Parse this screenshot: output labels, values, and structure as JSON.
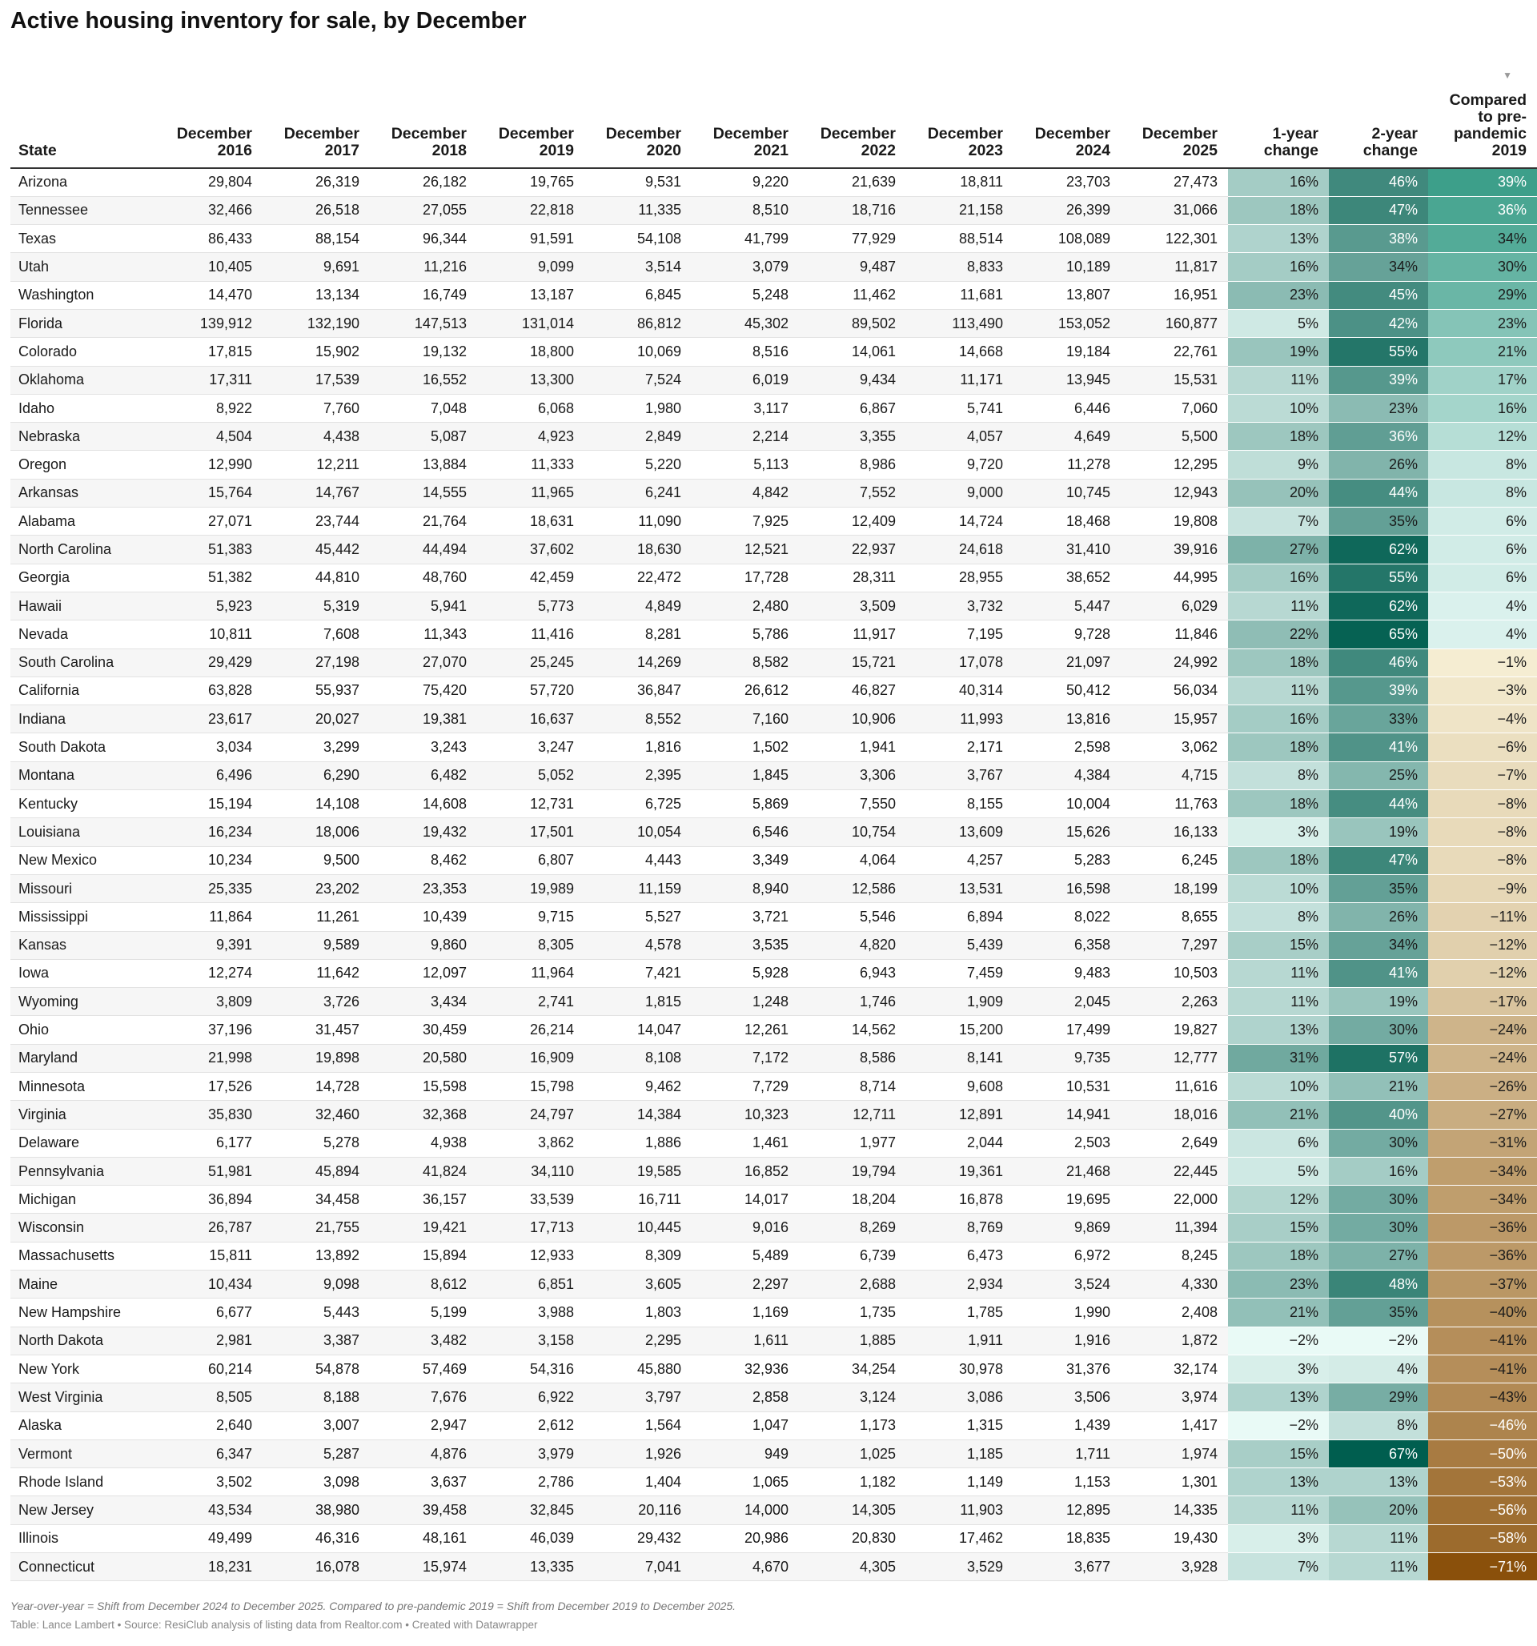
{
  "title": "Active housing inventory for sale, by December",
  "notes": "Year-over-year = Shift from December 2024 to December 2025. Compared to pre-pandemic 2019 = Shift from December 2019 to December 2025.",
  "credits": "Table: Lance Lambert • Source: ResiClub analysis of listing data from Realtor.com • Created with Datawrapper",
  "sort_icon": "sort-descending-icon",
  "columns": [
    "State",
    "December 2016",
    "December 2017",
    "December 2018",
    "December 2019",
    "December 2020",
    "December 2021",
    "December 2022",
    "December 2023",
    "December 2024",
    "December 2025",
    "1-year change",
    "2-year change",
    "Compared to pre-pandemic 2019"
  ],
  "chart_data": {
    "type": "table",
    "title": "Active housing inventory for sale, by December",
    "columns": [
      "State",
      "December 2016",
      "December 2017",
      "December 2018",
      "December 2019",
      "December 2020",
      "December 2021",
      "December 2022",
      "December 2023",
      "December 2024",
      "December 2025",
      "1-year change",
      "2-year change",
      "Compared to pre-pandemic 2019"
    ],
    "sorted_by": "Compared to pre-pandemic 2019",
    "sort_order": "descending",
    "rows": [
      [
        "Arizona",
        "29,804",
        "26,319",
        "26,182",
        "19,765",
        "9,531",
        "9,220",
        "21,639",
        "18,811",
        "23,703",
        "27,473",
        "16%",
        "46%",
        "39%"
      ],
      [
        "Tennessee",
        "32,466",
        "26,518",
        "27,055",
        "22,818",
        "11,335",
        "8,510",
        "18,716",
        "21,158",
        "26,399",
        "31,066",
        "18%",
        "47%",
        "36%"
      ],
      [
        "Texas",
        "86,433",
        "88,154",
        "96,344",
        "91,591",
        "54,108",
        "41,799",
        "77,929",
        "88,514",
        "108,089",
        "122,301",
        "13%",
        "38%",
        "34%"
      ],
      [
        "Utah",
        "10,405",
        "9,691",
        "11,216",
        "9,099",
        "3,514",
        "3,079",
        "9,487",
        "8,833",
        "10,189",
        "11,817",
        "16%",
        "34%",
        "30%"
      ],
      [
        "Washington",
        "14,470",
        "13,134",
        "16,749",
        "13,187",
        "6,845",
        "5,248",
        "11,462",
        "11,681",
        "13,807",
        "16,951",
        "23%",
        "45%",
        "29%"
      ],
      [
        "Florida",
        "139,912",
        "132,190",
        "147,513",
        "131,014",
        "86,812",
        "45,302",
        "89,502",
        "113,490",
        "153,052",
        "160,877",
        "5%",
        "42%",
        "23%"
      ],
      [
        "Colorado",
        "17,815",
        "15,902",
        "19,132",
        "18,800",
        "10,069",
        "8,516",
        "14,061",
        "14,668",
        "19,184",
        "22,761",
        "19%",
        "55%",
        "21%"
      ],
      [
        "Oklahoma",
        "17,311",
        "17,539",
        "16,552",
        "13,300",
        "7,524",
        "6,019",
        "9,434",
        "11,171",
        "13,945",
        "15,531",
        "11%",
        "39%",
        "17%"
      ],
      [
        "Idaho",
        "8,922",
        "7,760",
        "7,048",
        "6,068",
        "1,980",
        "3,117",
        "6,867",
        "5,741",
        "6,446",
        "7,060",
        "10%",
        "23%",
        "16%"
      ],
      [
        "Nebraska",
        "4,504",
        "4,438",
        "5,087",
        "4,923",
        "2,849",
        "2,214",
        "3,355",
        "4,057",
        "4,649",
        "5,500",
        "18%",
        "36%",
        "12%"
      ],
      [
        "Oregon",
        "12,990",
        "12,211",
        "13,884",
        "11,333",
        "5,220",
        "5,113",
        "8,986",
        "9,720",
        "11,278",
        "12,295",
        "9%",
        "26%",
        "8%"
      ],
      [
        "Arkansas",
        "15,764",
        "14,767",
        "14,555",
        "11,965",
        "6,241",
        "4,842",
        "7,552",
        "9,000",
        "10,745",
        "12,943",
        "20%",
        "44%",
        "8%"
      ],
      [
        "Alabama",
        "27,071",
        "23,744",
        "21,764",
        "18,631",
        "11,090",
        "7,925",
        "12,409",
        "14,724",
        "18,468",
        "19,808",
        "7%",
        "35%",
        "6%"
      ],
      [
        "North Carolina",
        "51,383",
        "45,442",
        "44,494",
        "37,602",
        "18,630",
        "12,521",
        "22,937",
        "24,618",
        "31,410",
        "39,916",
        "27%",
        "62%",
        "6%"
      ],
      [
        "Georgia",
        "51,382",
        "44,810",
        "48,760",
        "42,459",
        "22,472",
        "17,728",
        "28,311",
        "28,955",
        "38,652",
        "44,995",
        "16%",
        "55%",
        "6%"
      ],
      [
        "Hawaii",
        "5,923",
        "5,319",
        "5,941",
        "5,773",
        "4,849",
        "2,480",
        "3,509",
        "3,732",
        "5,447",
        "6,029",
        "11%",
        "62%",
        "4%"
      ],
      [
        "Nevada",
        "10,811",
        "7,608",
        "11,343",
        "11,416",
        "8,281",
        "5,786",
        "11,917",
        "7,195",
        "9,728",
        "11,846",
        "22%",
        "65%",
        "4%"
      ],
      [
        "South Carolina",
        "29,429",
        "27,198",
        "27,070",
        "25,245",
        "14,269",
        "8,582",
        "15,721",
        "17,078",
        "21,097",
        "24,992",
        "18%",
        "46%",
        "−1%"
      ],
      [
        "California",
        "63,828",
        "55,937",
        "75,420",
        "57,720",
        "36,847",
        "26,612",
        "46,827",
        "40,314",
        "50,412",
        "56,034",
        "11%",
        "39%",
        "−3%"
      ],
      [
        "Indiana",
        "23,617",
        "20,027",
        "19,381",
        "16,637",
        "8,552",
        "7,160",
        "10,906",
        "11,993",
        "13,816",
        "15,957",
        "16%",
        "33%",
        "−4%"
      ],
      [
        "South Dakota",
        "3,034",
        "3,299",
        "3,243",
        "3,247",
        "1,816",
        "1,502",
        "1,941",
        "2,171",
        "2,598",
        "3,062",
        "18%",
        "41%",
        "−6%"
      ],
      [
        "Montana",
        "6,496",
        "6,290",
        "6,482",
        "5,052",
        "2,395",
        "1,845",
        "3,306",
        "3,767",
        "4,384",
        "4,715",
        "8%",
        "25%",
        "−7%"
      ],
      [
        "Kentucky",
        "15,194",
        "14,108",
        "14,608",
        "12,731",
        "6,725",
        "5,869",
        "7,550",
        "8,155",
        "10,004",
        "11,763",
        "18%",
        "44%",
        "−8%"
      ],
      [
        "Louisiana",
        "16,234",
        "18,006",
        "19,432",
        "17,501",
        "10,054",
        "6,546",
        "10,754",
        "13,609",
        "15,626",
        "16,133",
        "3%",
        "19%",
        "−8%"
      ],
      [
        "New Mexico",
        "10,234",
        "9,500",
        "8,462",
        "6,807",
        "4,443",
        "3,349",
        "4,064",
        "4,257",
        "5,283",
        "6,245",
        "18%",
        "47%",
        "−8%"
      ],
      [
        "Missouri",
        "25,335",
        "23,202",
        "23,353",
        "19,989",
        "11,159",
        "8,940",
        "12,586",
        "13,531",
        "16,598",
        "18,199",
        "10%",
        "35%",
        "−9%"
      ],
      [
        "Mississippi",
        "11,864",
        "11,261",
        "10,439",
        "9,715",
        "5,527",
        "3,721",
        "5,546",
        "6,894",
        "8,022",
        "8,655",
        "8%",
        "26%",
        "−11%"
      ],
      [
        "Kansas",
        "9,391",
        "9,589",
        "9,860",
        "8,305",
        "4,578",
        "3,535",
        "4,820",
        "5,439",
        "6,358",
        "7,297",
        "15%",
        "34%",
        "−12%"
      ],
      [
        "Iowa",
        "12,274",
        "11,642",
        "12,097",
        "11,964",
        "7,421",
        "5,928",
        "6,943",
        "7,459",
        "9,483",
        "10,503",
        "11%",
        "41%",
        "−12%"
      ],
      [
        "Wyoming",
        "3,809",
        "3,726",
        "3,434",
        "2,741",
        "1,815",
        "1,248",
        "1,746",
        "1,909",
        "2,045",
        "2,263",
        "11%",
        "19%",
        "−17%"
      ],
      [
        "Ohio",
        "37,196",
        "31,457",
        "30,459",
        "26,214",
        "14,047",
        "12,261",
        "14,562",
        "15,200",
        "17,499",
        "19,827",
        "13%",
        "30%",
        "−24%"
      ],
      [
        "Maryland",
        "21,998",
        "19,898",
        "20,580",
        "16,909",
        "8,108",
        "7,172",
        "8,586",
        "8,141",
        "9,735",
        "12,777",
        "31%",
        "57%",
        "−24%"
      ],
      [
        "Minnesota",
        "17,526",
        "14,728",
        "15,598",
        "15,798",
        "9,462",
        "7,729",
        "8,714",
        "9,608",
        "10,531",
        "11,616",
        "10%",
        "21%",
        "−26%"
      ],
      [
        "Virginia",
        "35,830",
        "32,460",
        "32,368",
        "24,797",
        "14,384",
        "10,323",
        "12,711",
        "12,891",
        "14,941",
        "18,016",
        "21%",
        "40%",
        "−27%"
      ],
      [
        "Delaware",
        "6,177",
        "5,278",
        "4,938",
        "3,862",
        "1,886",
        "1,461",
        "1,977",
        "2,044",
        "2,503",
        "2,649",
        "6%",
        "30%",
        "−31%"
      ],
      [
        "Pennsylvania",
        "51,981",
        "45,894",
        "41,824",
        "34,110",
        "19,585",
        "16,852",
        "19,794",
        "19,361",
        "21,468",
        "22,445",
        "5%",
        "16%",
        "−34%"
      ],
      [
        "Michigan",
        "36,894",
        "34,458",
        "36,157",
        "33,539",
        "16,711",
        "14,017",
        "18,204",
        "16,878",
        "19,695",
        "22,000",
        "12%",
        "30%",
        "−34%"
      ],
      [
        "Wisconsin",
        "26,787",
        "21,755",
        "19,421",
        "17,713",
        "10,445",
        "9,016",
        "8,269",
        "8,769",
        "9,869",
        "11,394",
        "15%",
        "30%",
        "−36%"
      ],
      [
        "Massachusetts",
        "15,811",
        "13,892",
        "15,894",
        "12,933",
        "8,309",
        "5,489",
        "6,739",
        "6,473",
        "6,972",
        "8,245",
        "18%",
        "27%",
        "−36%"
      ],
      [
        "Maine",
        "10,434",
        "9,098",
        "8,612",
        "6,851",
        "3,605",
        "2,297",
        "2,688",
        "2,934",
        "3,524",
        "4,330",
        "23%",
        "48%",
        "−37%"
      ],
      [
        "New Hampshire",
        "6,677",
        "5,443",
        "5,199",
        "3,988",
        "1,803",
        "1,169",
        "1,735",
        "1,785",
        "1,990",
        "2,408",
        "21%",
        "35%",
        "−40%"
      ],
      [
        "North Dakota",
        "2,981",
        "3,387",
        "3,482",
        "3,158",
        "2,295",
        "1,611",
        "1,885",
        "1,911",
        "1,916",
        "1,872",
        "−2%",
        "−2%",
        "−41%"
      ],
      [
        "New York",
        "60,214",
        "54,878",
        "57,469",
        "54,316",
        "45,880",
        "32,936",
        "34,254",
        "30,978",
        "31,376",
        "32,174",
        "3%",
        "4%",
        "−41%"
      ],
      [
        "West Virginia",
        "8,505",
        "8,188",
        "7,676",
        "6,922",
        "3,797",
        "2,858",
        "3,124",
        "3,086",
        "3,506",
        "3,974",
        "13%",
        "29%",
        "−43%"
      ],
      [
        "Alaska",
        "2,640",
        "3,007",
        "2,947",
        "2,612",
        "1,564",
        "1,047",
        "1,173",
        "1,315",
        "1,439",
        "1,417",
        "−2%",
        "8%",
        "−46%"
      ],
      [
        "Vermont",
        "6,347",
        "5,287",
        "4,876",
        "3,979",
        "1,926",
        "949",
        "1,025",
        "1,185",
        "1,711",
        "1,974",
        "15%",
        "67%",
        "−50%"
      ],
      [
        "Rhode Island",
        "3,502",
        "3,098",
        "3,637",
        "2,786",
        "1,404",
        "1,065",
        "1,182",
        "1,149",
        "1,153",
        "1,301",
        "13%",
        "13%",
        "−53%"
      ],
      [
        "New Jersey",
        "43,534",
        "38,980",
        "39,458",
        "32,845",
        "20,116",
        "14,000",
        "14,305",
        "11,903",
        "12,895",
        "14,335",
        "11%",
        "20%",
        "−56%"
      ],
      [
        "Illinois",
        "49,499",
        "46,316",
        "48,161",
        "46,039",
        "29,432",
        "20,986",
        "20,830",
        "17,462",
        "18,835",
        "19,430",
        "3%",
        "11%",
        "−58%"
      ],
      [
        "Connecticut",
        "18,231",
        "16,078",
        "15,974",
        "13,335",
        "7,041",
        "4,670",
        "4,305",
        "3,529",
        "3,677",
        "3,928",
        "7%",
        "11%",
        "−71%"
      ]
    ]
  }
}
